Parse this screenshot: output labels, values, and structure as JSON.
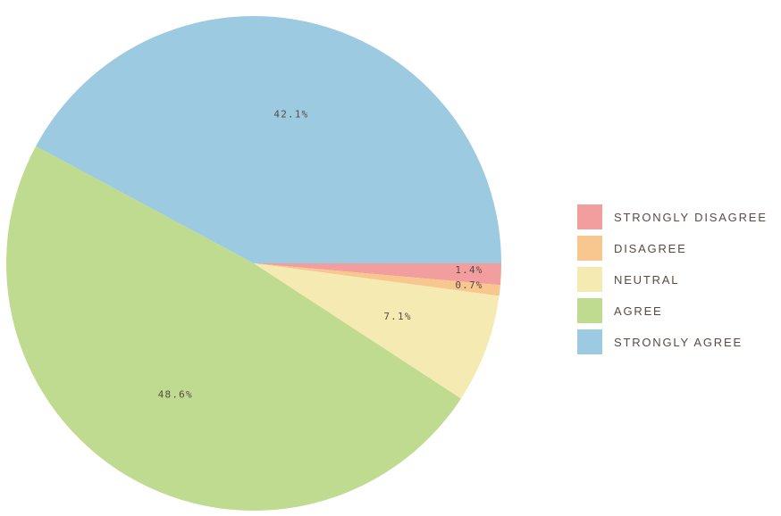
{
  "chart_data": {
    "type": "pie",
    "categories": [
      "STRONGLY DISAGREE",
      "DISAGREE",
      "NEUTRAL",
      "AGREE",
      "STRONGLY AGREE"
    ],
    "values": [
      1.4,
      0.7,
      7.1,
      48.6,
      42.1
    ],
    "value_labels": [
      "1.4%",
      "0.7%",
      "7.1%",
      "48.6%",
      "42.1%"
    ],
    "colors": [
      "#f29e9f",
      "#f8c78f",
      "#f6eab3",
      "#bfdb8f",
      "#9ccae0"
    ],
    "title": "",
    "legend_position": "right",
    "start_angle_deg": 0,
    "direction": "clockwise"
  }
}
